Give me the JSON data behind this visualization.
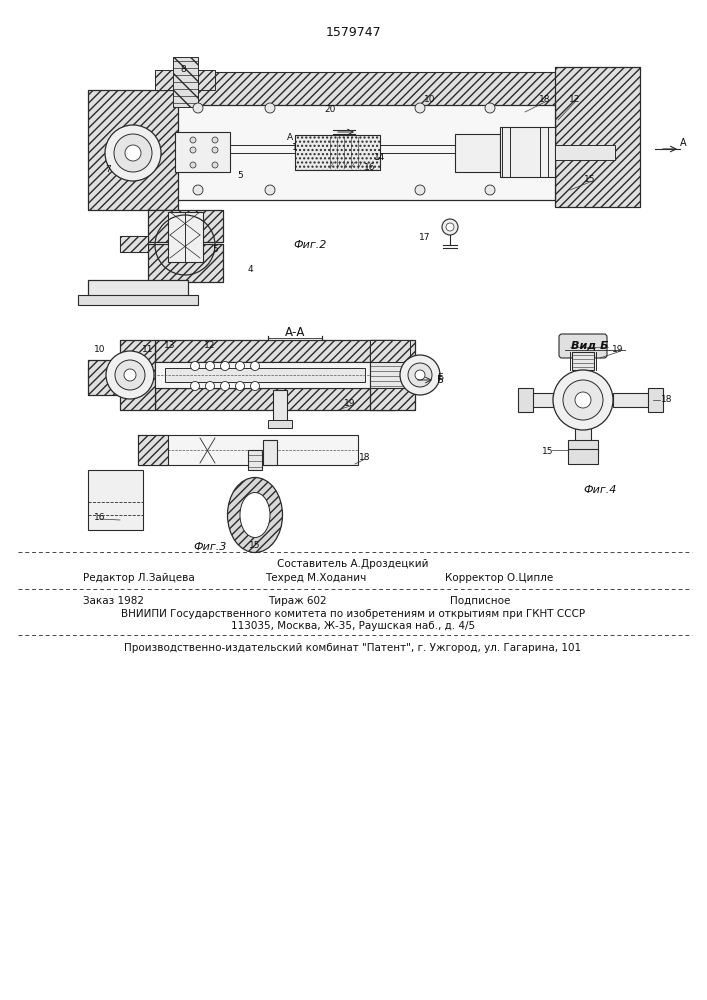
{
  "patent_number": "1579747",
  "fig2_label": "Фиг.2",
  "fig3_label": "Фиг.3",
  "fig4_label": "Фиг.4",
  "section_label": "А-А",
  "vid_label": "Вид Б",
  "footer_line1_col1": "Составитель А.Дроздецкий",
  "footer_line2_col1": "Редактор Л.Зайцева",
  "footer_line2_col2": "Техред М.Хoданич",
  "footer_line2_col3": "Корректор О.Ципле",
  "footer_sep1": "Заказ 1982",
  "footer_sep2": "Тираж 602",
  "footer_sep3": "Подписное",
  "footer_vniip1": "ВНИИПИ Государственного комитета по изобретениям и открытиям при ГКНТ СССР",
  "footer_vniip2": "113035, Москва, Ж-35, Раушская наб., д. 4/5",
  "footer_last": "Производственно-издательский комбинат \"Патент\", г. Ужгород, ул. Гагарина, 101",
  "line_color": "#2a2a2a"
}
